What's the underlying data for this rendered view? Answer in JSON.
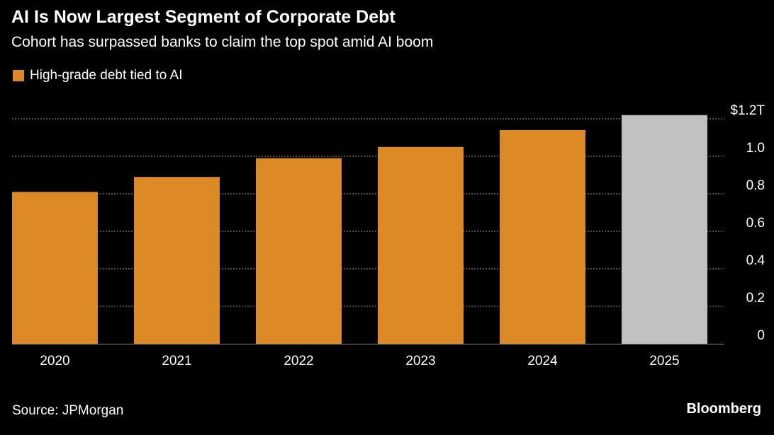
{
  "header": {
    "title": "AI Is Now Largest Segment of Corporate Debt",
    "subtitle": "Cohort has surpassed banks to claim the top spot amid AI boom"
  },
  "legend": {
    "label": "High-grade debt tied to AI",
    "color": "#dc8a26"
  },
  "footer": {
    "source": "Source: JPMorgan",
    "brand": "Bloomberg"
  },
  "colors": {
    "bar": "#dc8a26",
    "projected": "#c0c0c0",
    "grid": "#666666"
  },
  "chart_data": {
    "type": "bar",
    "title": "AI Is Now Largest Segment of Corporate Debt",
    "subtitle": "Cohort has surpassed banks to claim the top spot amid AI boom",
    "categories": [
      "2020",
      "2021",
      "2022",
      "2023",
      "2024",
      "2025"
    ],
    "series": [
      {
        "name": "High-grade debt tied to AI",
        "values": [
          0.81,
          0.89,
          0.99,
          1.05,
          1.14,
          1.22
        ]
      }
    ],
    "highlight": {
      "2025": "gray"
    },
    "ylim": [
      0,
      1.2
    ],
    "yticks": [
      0,
      0.2,
      0.4,
      0.6,
      0.8,
      1.0,
      1.2
    ],
    "ytick_labels": [
      "0",
      "0.2",
      "0.4",
      "0.6",
      "0.8",
      "1.0",
      "$1.2T"
    ],
    "yaxis_side": "right",
    "grid": true,
    "xlabel": "",
    "ylabel": "",
    "legend_position": "top-left"
  }
}
